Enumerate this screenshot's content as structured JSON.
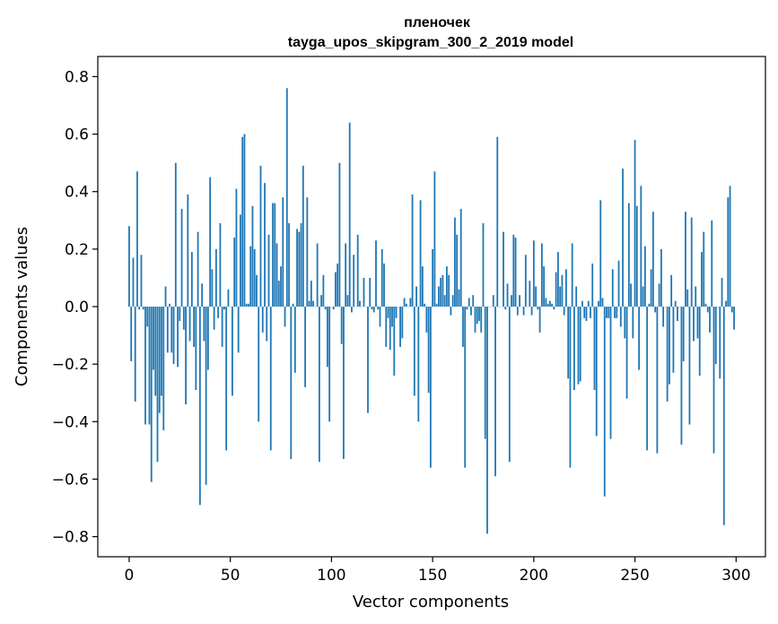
{
  "chart_data": {
    "type": "bar",
    "title": "пленочек",
    "subtitle": "tayga_upos_skipgram_300_2_2019 model",
    "xlabel": "Vector components",
    "ylabel": "Components values",
    "xlim": [
      -15.5,
      314.5
    ],
    "ylim": [
      -0.87,
      0.87
    ],
    "xticks": [
      0,
      50,
      100,
      150,
      200,
      250,
      300
    ],
    "yticks": [
      -0.8,
      -0.6,
      -0.4,
      -0.2,
      0.0,
      0.2,
      0.4,
      0.6,
      0.8
    ],
    "ytick_labels": [
      "−0.8",
      "−0.6",
      "−0.4",
      "−0.2",
      "0.0",
      "0.2",
      "0.4",
      "0.6",
      "0.8"
    ],
    "bar_color": "#1f77b4",
    "grid": false,
    "values": [
      0.28,
      -0.19,
      0.17,
      -0.33,
      0.47,
      -0.01,
      0.18,
      -0.01,
      -0.41,
      -0.07,
      -0.41,
      -0.61,
      -0.22,
      -0.31,
      -0.54,
      -0.37,
      -0.31,
      -0.43,
      0.07,
      -0.16,
      0.01,
      -0.16,
      -0.2,
      0.5,
      -0.21,
      -0.05,
      0.34,
      -0.08,
      -0.34,
      0.39,
      -0.12,
      0.19,
      -0.14,
      -0.29,
      0.26,
      -0.69,
      0.08,
      -0.12,
      -0.62,
      -0.22,
      0.45,
      0.13,
      -0.08,
      0.2,
      -0.04,
      0.29,
      -0.14,
      -0.01,
      -0.5,
      0.06,
      0.0,
      -0.31,
      0.24,
      0.41,
      -0.16,
      0.32,
      0.59,
      0.6,
      0.01,
      0.01,
      0.21,
      0.35,
      0.2,
      0.11,
      -0.4,
      0.49,
      -0.09,
      0.43,
      -0.12,
      0.25,
      -0.5,
      0.36,
      0.36,
      0.22,
      0.09,
      0.14,
      0.38,
      -0.07,
      0.76,
      0.29,
      -0.53,
      0.01,
      -0.23,
      0.27,
      0.26,
      0.29,
      0.49,
      -0.28,
      0.38,
      0.02,
      0.09,
      0.02,
      0.0,
      0.22,
      -0.54,
      0.04,
      0.11,
      -0.01,
      -0.21,
      -0.4,
      0.0,
      -0.01,
      0.12,
      0.15,
      0.5,
      -0.13,
      -0.53,
      0.22,
      0.04,
      0.64,
      -0.02,
      0.18,
      0.0,
      0.25,
      0.02,
      0.0,
      0.1,
      0.0,
      -0.37,
      0.1,
      -0.01,
      -0.02,
      0.23,
      -0.01,
      -0.07,
      0.2,
      0.15,
      -0.14,
      -0.04,
      -0.15,
      -0.07,
      -0.24,
      -0.04,
      0.0,
      -0.14,
      -0.11,
      0.03,
      0.01,
      0.0,
      0.03,
      0.39,
      -0.31,
      0.07,
      -0.4,
      0.37,
      0.14,
      0.01,
      -0.09,
      -0.3,
      -0.56,
      0.2,
      0.47,
      0.01,
      0.07,
      0.1,
      0.11,
      0.04,
      0.14,
      0.11,
      -0.03,
      0.04,
      0.31,
      0.25,
      0.06,
      0.34,
      -0.14,
      -0.56,
      -0.01,
      0.03,
      -0.03,
      0.04,
      -0.09,
      -0.06,
      -0.05,
      -0.09,
      0.29,
      -0.46,
      -0.79,
      0.0,
      0.0,
      0.04,
      -0.59,
      0.59,
      0.0,
      0.0,
      0.26,
      -0.01,
      0.08,
      -0.54,
      0.04,
      0.25,
      0.24,
      -0.03,
      0.04,
      0.0,
      -0.03,
      0.18,
      0.0,
      0.09,
      -0.03,
      0.23,
      0.07,
      -0.01,
      -0.09,
      0.22,
      0.14,
      0.03,
      0.01,
      0.02,
      0.01,
      -0.01,
      0.12,
      0.19,
      0.07,
      0.11,
      -0.03,
      0.13,
      -0.25,
      -0.56,
      0.22,
      -0.29,
      0.07,
      -0.27,
      -0.26,
      0.02,
      -0.04,
      -0.05,
      0.02,
      -0.04,
      0.15,
      -0.29,
      -0.45,
      0.02,
      0.37,
      0.03,
      -0.66,
      -0.04,
      -0.04,
      -0.46,
      0.13,
      -0.04,
      -0.04,
      0.16,
      -0.07,
      0.48,
      -0.11,
      -0.32,
      0.36,
      0.08,
      -0.11,
      0.58,
      0.35,
      -0.22,
      0.42,
      0.07,
      0.21,
      -0.5,
      0.01,
      0.13,
      0.33,
      -0.02,
      -0.51,
      0.08,
      0.2,
      -0.07,
      0.0,
      -0.33,
      -0.27,
      0.11,
      -0.23,
      0.02,
      -0.05,
      0.0,
      -0.48,
      -0.19,
      0.33,
      0.06,
      -0.41,
      0.31,
      -0.12,
      0.07,
      -0.11,
      -0.24,
      0.19,
      0.26,
      0.01,
      -0.02,
      -0.09,
      0.3,
      -0.51,
      -0.2,
      0.0,
      -0.25,
      0.1,
      -0.76,
      0.02,
      0.38,
      0.42,
      -0.02,
      -0.08
    ]
  }
}
